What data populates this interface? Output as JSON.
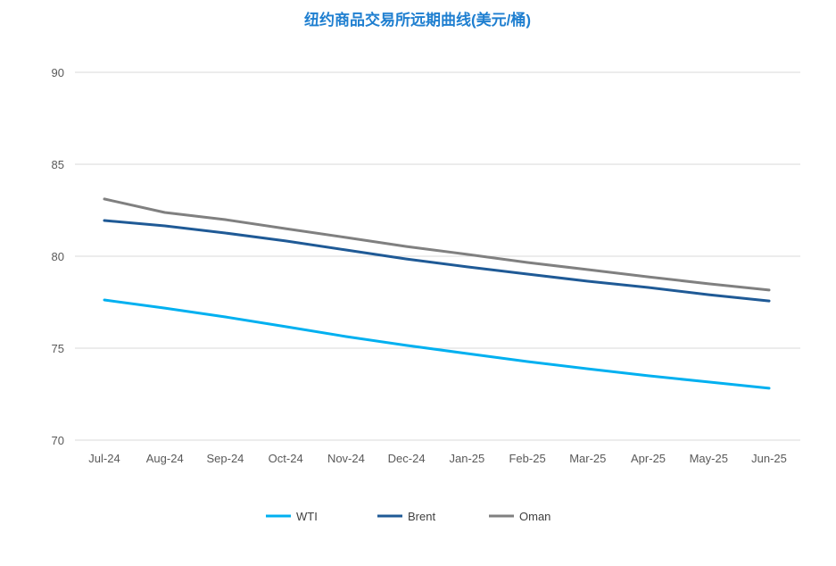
{
  "chart_data": {
    "type": "line",
    "title": "纽约商品交易所远期曲线(美元/桶)",
    "xlabel": "",
    "ylabel": "",
    "categories": [
      "Jul-24",
      "Aug-24",
      "Sep-24",
      "Oct-24",
      "Nov-24",
      "Dec-24",
      "Jan-25",
      "Feb-25",
      "Mar-25",
      "Apr-25",
      "May-25",
      "Jun-25"
    ],
    "ylim": [
      70,
      90
    ],
    "yticks": [
      70,
      75,
      80,
      85,
      90
    ],
    "grid": true,
    "legend_position": "bottom",
    "series": [
      {
        "name": "WTI",
        "color": "#00b0f0",
        "values": [
          77.62,
          77.18,
          76.7,
          76.17,
          75.63,
          75.15,
          74.71,
          74.27,
          73.88,
          73.5,
          73.16,
          72.82
        ]
      },
      {
        "name": "Brent",
        "color": "#1f5a96",
        "values": [
          81.94,
          81.65,
          81.26,
          80.83,
          80.34,
          79.85,
          79.42,
          79.03,
          78.64,
          78.3,
          77.91,
          77.57
        ]
      },
      {
        "name": "Oman",
        "color": "#808080",
        "values": [
          83.11,
          82.38,
          81.99,
          81.5,
          81.02,
          80.53,
          80.1,
          79.66,
          79.27,
          78.88,
          78.5,
          78.16
        ]
      }
    ]
  }
}
